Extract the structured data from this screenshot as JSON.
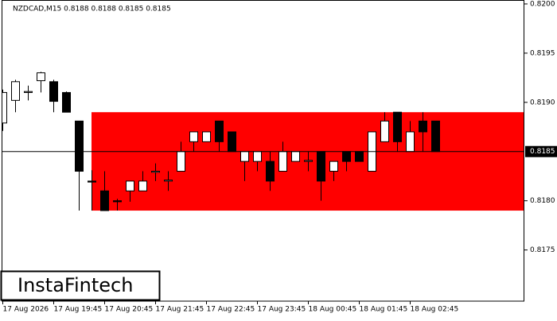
{
  "chart_data": {
    "type": "candlestick",
    "title": "NZDCAD,M15  0.8188 0.8188 0.8185 0.8185",
    "watermark": "InstaFintech",
    "categories": [
      "17 Aug 2026",
      null,
      null,
      null,
      "17 Aug 19:45",
      null,
      null,
      null,
      "17 Aug 20:45",
      null,
      null,
      null,
      "17 Aug 21:45",
      null,
      null,
      null,
      "17 Aug 22:45",
      null,
      null,
      null,
      "17 Aug 23:45",
      null,
      null,
      null,
      "18 Aug 00:45",
      null,
      null,
      null,
      "18 Aug 01:45",
      null,
      null,
      null,
      "18 Aug 02:45",
      null,
      null
    ],
    "open": [
      0.81879,
      0.81902,
      0.8191,
      0.81922,
      0.81921,
      0.8191,
      0.81881,
      0.8182,
      0.8181,
      0.818,
      0.8181,
      0.8181,
      0.81829,
      0.8182,
      0.8183,
      0.8186,
      0.8186,
      0.81881,
      0.8187,
      0.8184,
      0.8184,
      0.8184,
      0.8183,
      0.8184,
      0.8184,
      0.8185,
      0.8183,
      0.8185,
      0.8185,
      0.8183,
      0.8186,
      0.8189,
      0.8185,
      0.81881,
      0.81881
    ],
    "high": [
      0.81913,
      0.81923,
      0.81917,
      0.81931,
      0.81923,
      0.81911,
      0.81881,
      0.81831,
      0.8183,
      0.81802,
      0.8182,
      0.8183,
      0.81838,
      0.8183,
      0.8186,
      0.8187,
      0.8187,
      0.81881,
      0.8187,
      0.8185,
      0.8185,
      0.8185,
      0.8186,
      0.8185,
      0.8185,
      0.8185,
      0.8184,
      0.8185,
      0.8185,
      0.8187,
      0.8189,
      0.8189,
      0.81881,
      0.8189,
      0.81881
    ],
    "low": [
      0.81871,
      0.8189,
      0.81902,
      0.8191,
      0.8189,
      0.8189,
      0.8179,
      0.8179,
      0.8179,
      0.8179,
      0.81799,
      0.8181,
      0.8182,
      0.8181,
      0.8183,
      0.8185,
      0.8186,
      0.8185,
      0.8185,
      0.8182,
      0.8183,
      0.8181,
      0.8183,
      0.8184,
      0.8183,
      0.818,
      0.8182,
      0.8183,
      0.8184,
      0.8183,
      0.8186,
      0.8185,
      0.8185,
      0.8185,
      0.8185
    ],
    "close": [
      0.8191,
      0.81921,
      0.81911,
      0.8193,
      0.81901,
      0.8189,
      0.8183,
      0.81819,
      0.8179,
      0.81799,
      0.8182,
      0.8182,
      0.8183,
      0.81821,
      0.8185,
      0.8187,
      0.8187,
      0.8186,
      0.8185,
      0.8185,
      0.8185,
      0.8182,
      0.8185,
      0.8185,
      0.81841,
      0.8182,
      0.8184,
      0.8184,
      0.8184,
      0.8187,
      0.81881,
      0.8186,
      0.8187,
      0.8187,
      0.8185
    ],
    "up_color": "#ffffff",
    "down_color": "#000000",
    "zone": {
      "top": 0.8189,
      "bottom": 0.8179,
      "color": "#ff0000"
    },
    "current_price": {
      "value": 0.8185,
      "label": "0.8185"
    },
    "ylim": [
      0.81698,
      0.82004
    ],
    "yticks": [
      {
        "value": 0.82,
        "label": "0.8200"
      },
      {
        "value": 0.8195,
        "label": "0.8195"
      },
      {
        "value": 0.819,
        "label": "0.8190"
      },
      {
        "value": 0.818,
        "label": "0.8180"
      },
      {
        "value": 0.8175,
        "label": "0.8175"
      }
    ]
  }
}
